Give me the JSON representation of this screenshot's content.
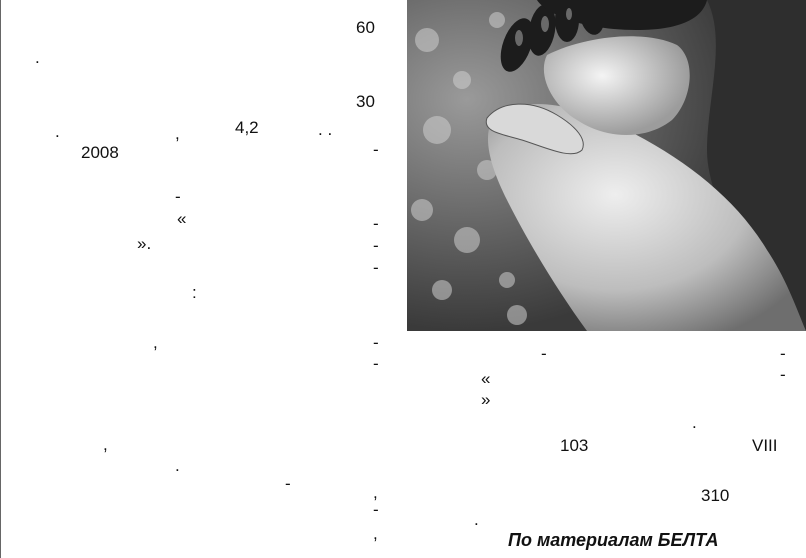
{
  "article": {
    "left_column": {
      "n60": "60",
      "dot1": ".",
      "n30": "30",
      "dot2": ".",
      "comma1": ",",
      "n42": "4,2",
      "dots": ".  .",
      "dash1": "-",
      "n2008": "2008",
      "dash2": "-",
      "quote_open": "«",
      "dash3": "-",
      "quote_close": "».",
      "dash4": "-",
      "dash5": "-",
      "colon": ":",
      "comma2": ",",
      "dash6": "-",
      "dash7": "-",
      "comma3": ",",
      "dot3": ".",
      "dash8": "-",
      "comma4": ",",
      "dash9": "-",
      "comma5": ","
    },
    "right_column": {
      "dash1": "-",
      "dash2": "-",
      "quote_open": "«",
      "dash3": "-",
      "quote_close": "»",
      "dot1": ".",
      "n103": "103",
      "roman": "VIII",
      "n310": "310",
      "dot2": "."
    },
    "photo": {
      "description_icon": "hands-holding-oil-photo"
    },
    "credit": "По материалам БЕЛТА"
  }
}
